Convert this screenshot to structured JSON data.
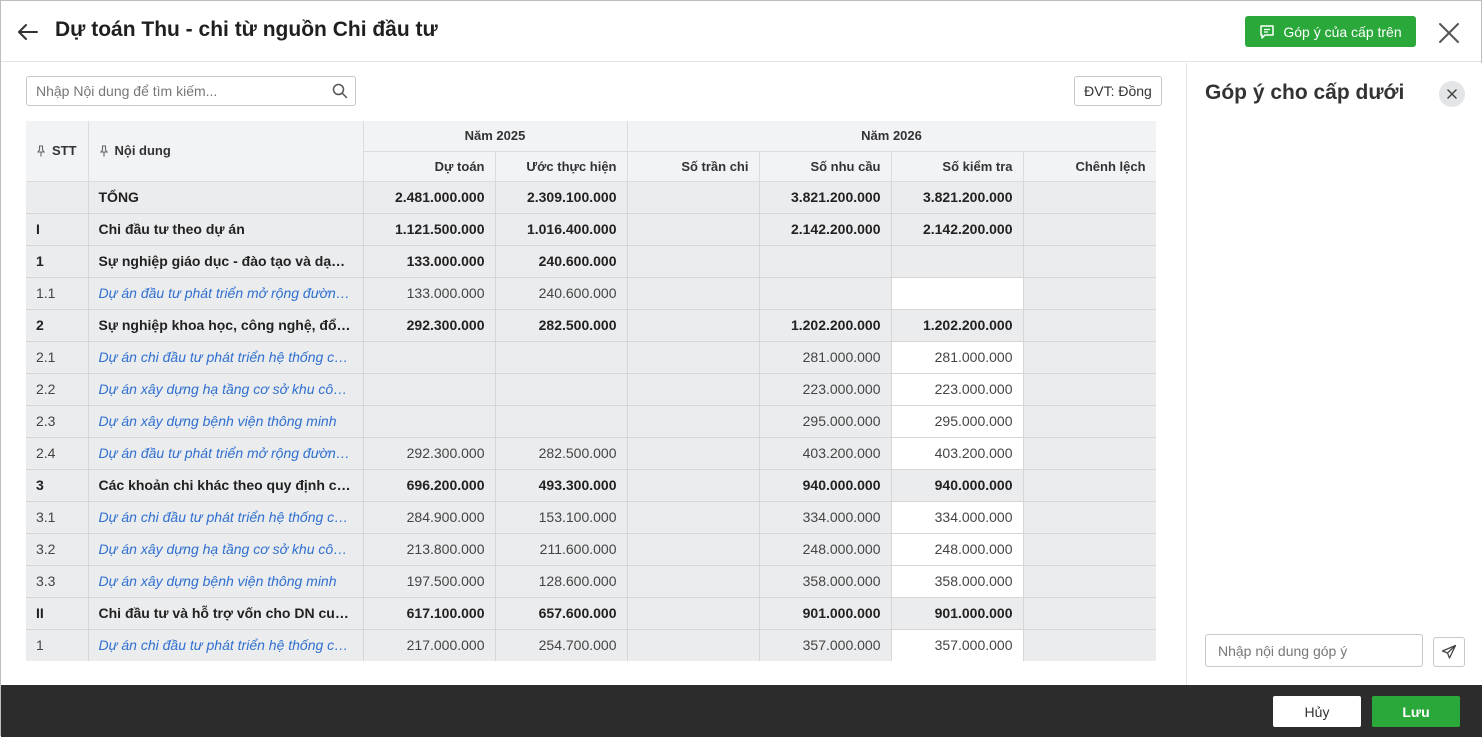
{
  "header": {
    "title": "Dự toán Thu - chi từ nguồn Chi đầu tư",
    "feedback_button": "Góp ý của cấp trên"
  },
  "toolbar": {
    "search_placeholder": "Nhập Nội dung để tìm kiếm...",
    "unit_label": "ĐVT: Đồng"
  },
  "table": {
    "headers": {
      "stt": "STT",
      "content": "Nội dung",
      "year1": "Năm 2025",
      "year2": "Năm 2026",
      "du_toan": "Dự toán",
      "uoc_thuc_hien": "Ước thực hiện",
      "so_tran_chi": "Số trần chi",
      "so_nhu_cau": "Số nhu cầu",
      "so_kiem_tra": "Số kiểm tra",
      "chenh_lech": "Chênh lệch"
    },
    "rows": [
      {
        "stt": "",
        "name": "TỔNG",
        "du_toan": "2.481.000.000",
        "uoc": "2.309.100.000",
        "tran": "",
        "nhu_cau": "3.821.200.000",
        "kiem_tra": "3.821.200.000",
        "chenh": "",
        "style": "bold",
        "editable": false
      },
      {
        "stt": "I",
        "name": "Chi đầu tư theo dự án",
        "du_toan": "1.121.500.000",
        "uoc": "1.016.400.000",
        "tran": "",
        "nhu_cau": "2.142.200.000",
        "kiem_tra": "2.142.200.000",
        "chenh": "",
        "style": "bold",
        "editable": false
      },
      {
        "stt": "1",
        "name": "Sự nghiệp giáo dục - đào tạo và dạy nghề",
        "du_toan": "133.000.000",
        "uoc": "240.600.000",
        "tran": "",
        "nhu_cau": "",
        "kiem_tra": "",
        "chenh": "",
        "style": "bold",
        "editable": false
      },
      {
        "stt": "1.1",
        "name": "Dự án đầu tư phát triển mở rộng đường giao thông",
        "du_toan": "133.000.000",
        "uoc": "240.600.000",
        "tran": "",
        "nhu_cau": "",
        "kiem_tra": "",
        "chenh": "",
        "style": "sub",
        "editable": true
      },
      {
        "stt": "2",
        "name": "Sự nghiệp khoa học, công nghệ, đổi mới sáng tạo",
        "du_toan": "292.300.000",
        "uoc": "282.500.000",
        "tran": "",
        "nhu_cau": "1.202.200.000",
        "kiem_tra": "1.202.200.000",
        "chenh": "",
        "style": "bold",
        "editable": false
      },
      {
        "stt": "2.1",
        "name": "Dự án chi đầu tư phát triển hệ thống cấp nước",
        "du_toan": "",
        "uoc": "",
        "tran": "",
        "nhu_cau": "281.000.000",
        "kiem_tra": "281.000.000",
        "chenh": "",
        "style": "sub",
        "editable": true
      },
      {
        "stt": "2.2",
        "name": "Dự án xây dựng hạ tầng cơ sở khu công nghiệp",
        "du_toan": "",
        "uoc": "",
        "tran": "",
        "nhu_cau": "223.000.000",
        "kiem_tra": "223.000.000",
        "chenh": "",
        "style": "sub",
        "editable": true
      },
      {
        "stt": "2.3",
        "name": "Dự án xây dựng bệnh viện thông minh",
        "du_toan": "",
        "uoc": "",
        "tran": "",
        "nhu_cau": "295.000.000",
        "kiem_tra": "295.000.000",
        "chenh": "",
        "style": "sub",
        "editable": true
      },
      {
        "stt": "2.4",
        "name": "Dự án đầu tư phát triển mở rộng đường giao thông",
        "du_toan": "292.300.000",
        "uoc": "282.500.000",
        "tran": "",
        "nhu_cau": "403.200.000",
        "kiem_tra": "403.200.000",
        "chenh": "",
        "style": "sub",
        "editable": true
      },
      {
        "stt": "3",
        "name": "Các khoản chi khác theo quy định của pháp luật",
        "du_toan": "696.200.000",
        "uoc": "493.300.000",
        "tran": "",
        "nhu_cau": "940.000.000",
        "kiem_tra": "940.000.000",
        "chenh": "",
        "style": "bold",
        "editable": false
      },
      {
        "stt": "3.1",
        "name": "Dự án chi đầu tư phát triển hệ thống cấp nước",
        "du_toan": "284.900.000",
        "uoc": "153.100.000",
        "tran": "",
        "nhu_cau": "334.000.000",
        "kiem_tra": "334.000.000",
        "chenh": "",
        "style": "sub",
        "editable": true
      },
      {
        "stt": "3.2",
        "name": "Dự án xây dựng hạ tầng cơ sở khu công nghiệp",
        "du_toan": "213.800.000",
        "uoc": "211.600.000",
        "tran": "",
        "nhu_cau": "248.000.000",
        "kiem_tra": "248.000.000",
        "chenh": "",
        "style": "sub",
        "editable": true
      },
      {
        "stt": "3.3",
        "name": "Dự án xây dựng bệnh viện thông minh",
        "du_toan": "197.500.000",
        "uoc": "128.600.000",
        "tran": "",
        "nhu_cau": "358.000.000",
        "kiem_tra": "358.000.000",
        "chenh": "",
        "style": "sub",
        "editable": true
      },
      {
        "stt": "II",
        "name": "Chi đầu tư và hỗ trợ vốn cho DN cung cấp dịch vụ",
        "du_toan": "617.100.000",
        "uoc": "657.600.000",
        "tran": "",
        "nhu_cau": "901.000.000",
        "kiem_tra": "901.000.000",
        "chenh": "",
        "style": "bold",
        "editable": false
      },
      {
        "stt": "1",
        "name": "Dự án chi đầu tư phát triển hệ thống cấp nước",
        "du_toan": "217.000.000",
        "uoc": "254.700.000",
        "tran": "",
        "nhu_cau": "357.000.000",
        "kiem_tra": "357.000.000",
        "chenh": "",
        "style": "sub",
        "editable": true
      }
    ]
  },
  "panel": {
    "title": "Góp ý cho cấp dưới",
    "input_placeholder": "Nhập nội dung góp ý"
  },
  "footer": {
    "cancel": "Hủy",
    "save": "Lưu"
  },
  "colors": {
    "accent_green": "#2aa83a",
    "link_blue": "#2e6fd0",
    "footer_bg": "#2c2c2c"
  }
}
